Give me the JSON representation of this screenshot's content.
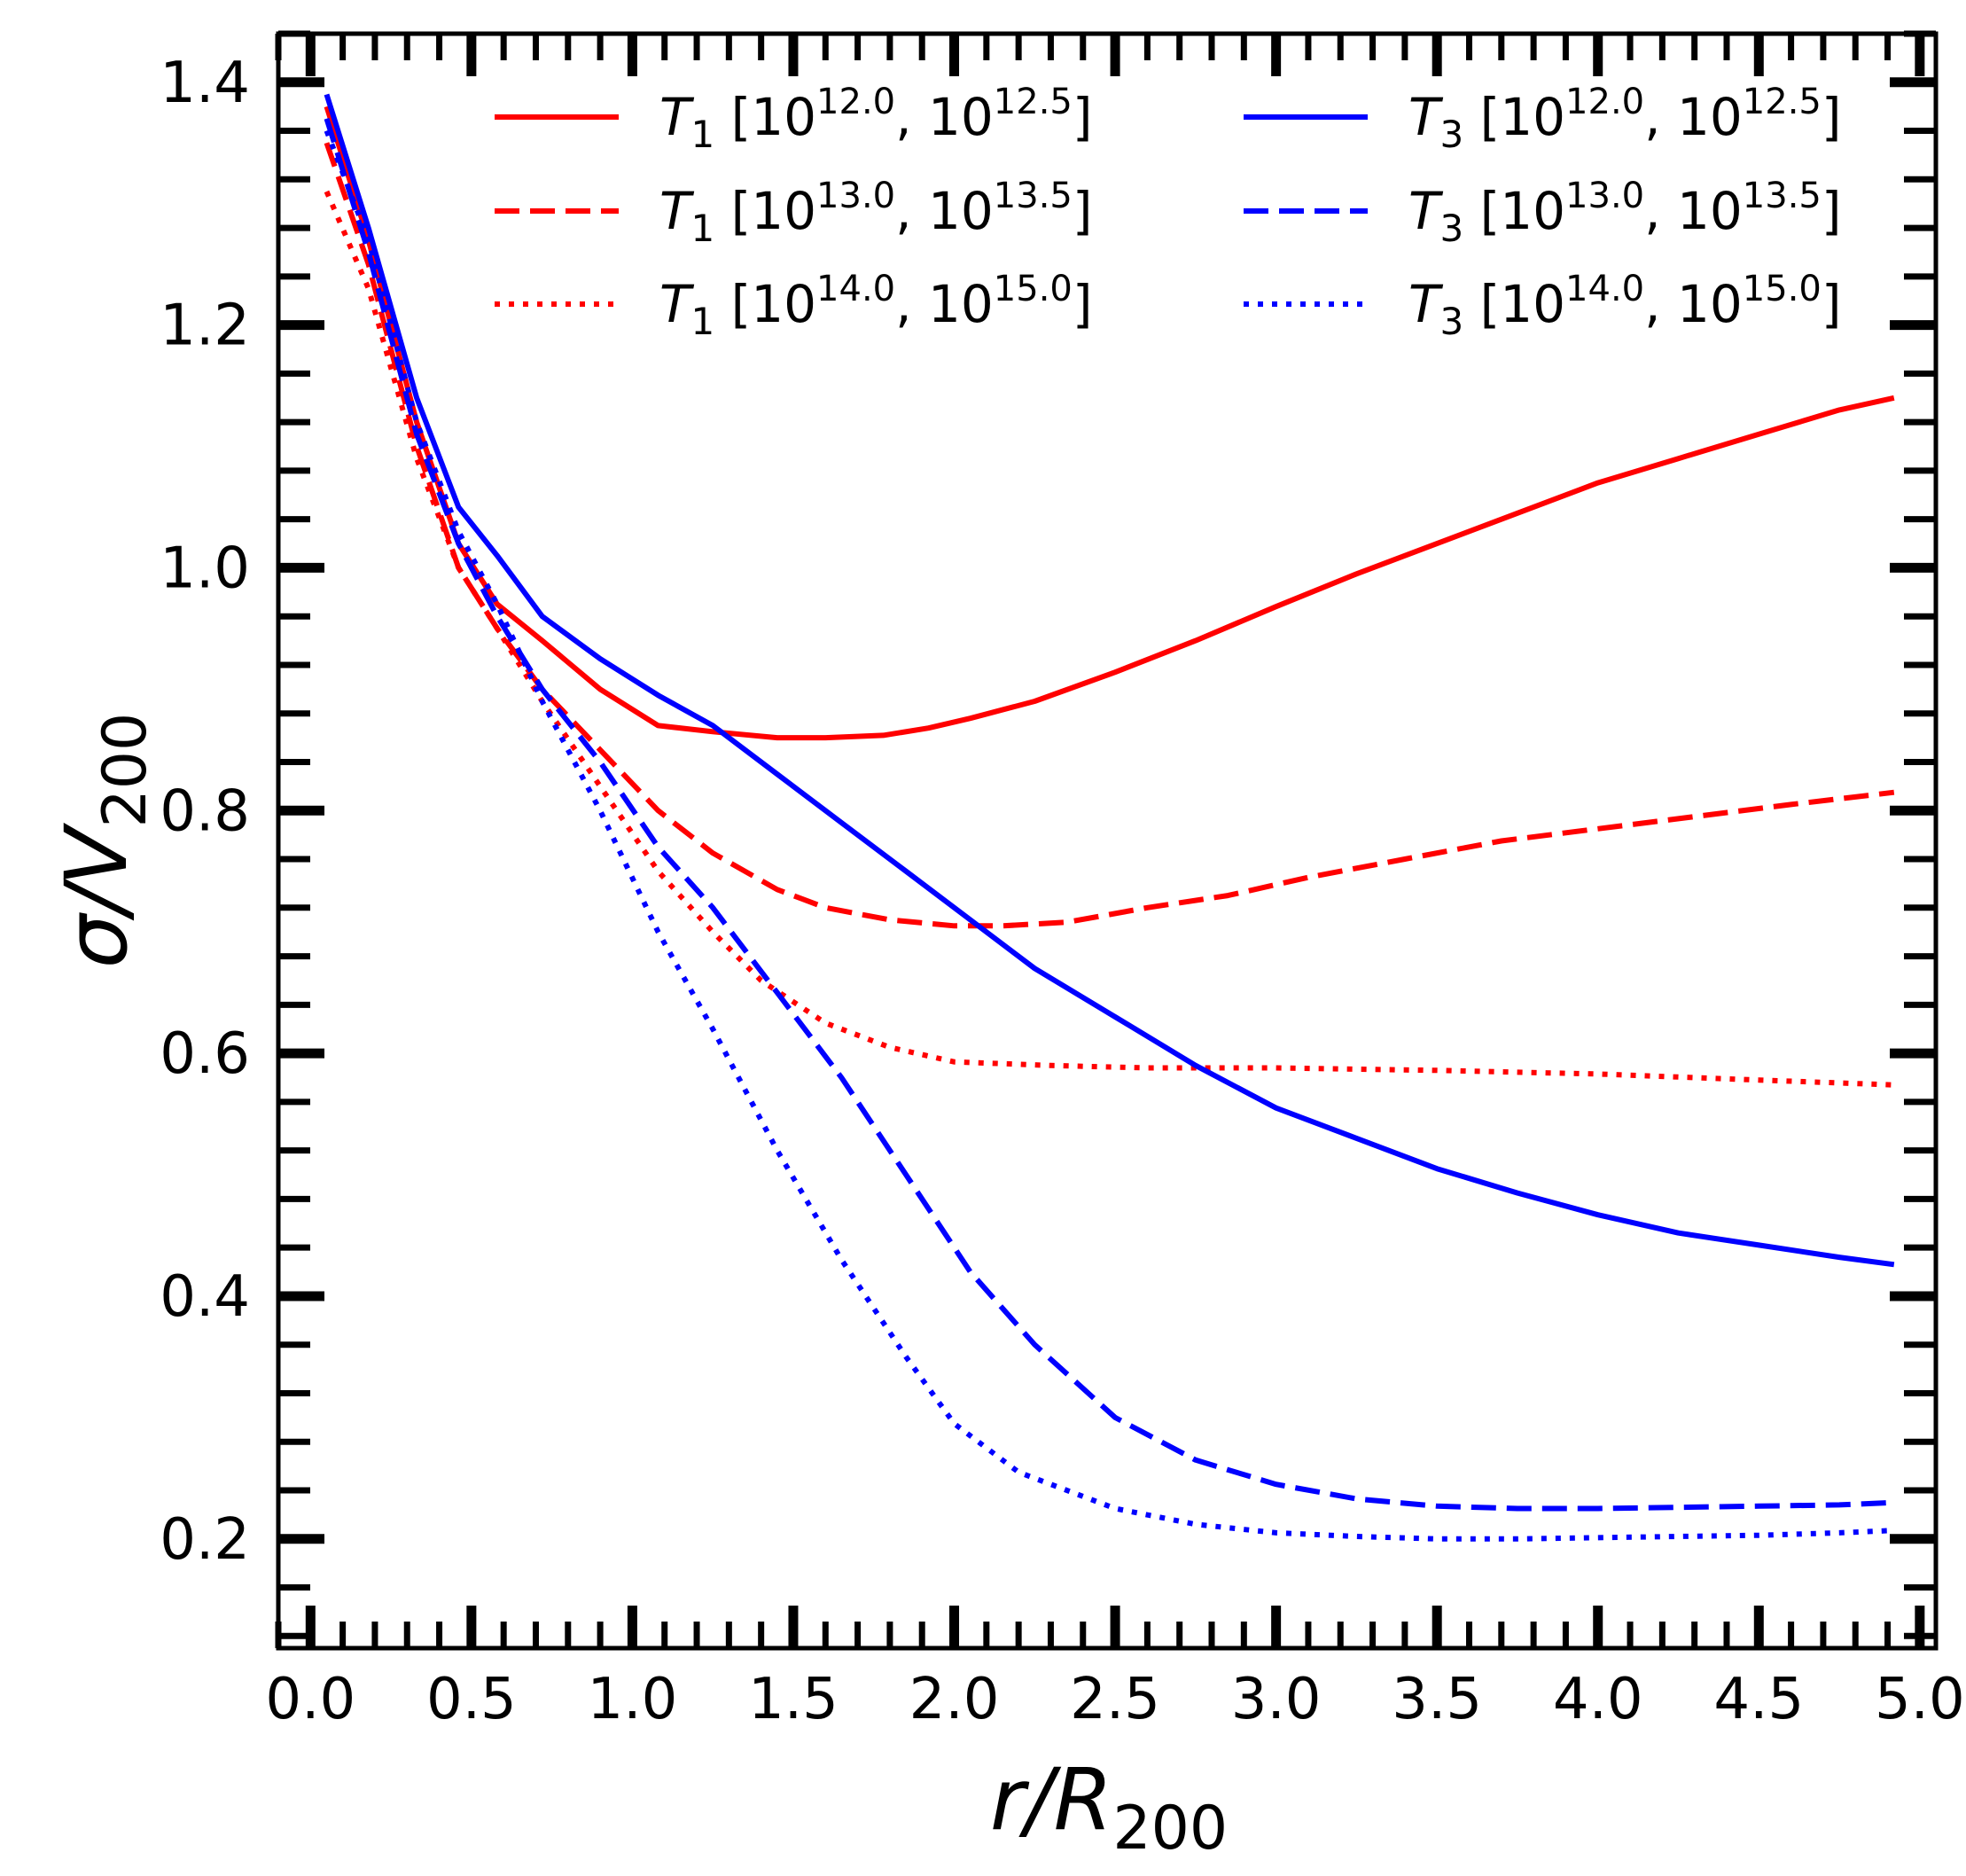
{
  "chart_data": {
    "type": "line",
    "title": "",
    "xlabel": {
      "main": "r/R",
      "sub": "200"
    },
    "ylabel": {
      "main": "σ/V",
      "sub": "200"
    },
    "xlim": [
      -0.1,
      5.05
    ],
    "ylim": [
      0.11,
      1.44
    ],
    "xticks": [
      0.0,
      0.5,
      1.0,
      1.5,
      2.0,
      2.5,
      3.0,
      3.5,
      4.0,
      4.5,
      5.0
    ],
    "xtick_labels": [
      "0.0",
      "0.5",
      "1.0",
      "1.5",
      "2.0",
      "2.5",
      "3.0",
      "3.5",
      "4.0",
      "4.5",
      "5.0"
    ],
    "yticks": [
      0.2,
      0.4,
      0.6,
      0.8,
      1.0,
      1.2,
      1.4
    ],
    "ytick_labels": [
      "0.2",
      "0.4",
      "0.6",
      "0.8",
      "1.0",
      "1.2",
      "1.4"
    ],
    "x_minor_step": 0.1,
    "y_minor_step": 0.04,
    "legend_position": "upper, two columns",
    "series": [
      {
        "name": "T1 [10^12.0, 10^12.5]",
        "legend": {
          "sym": "T",
          "idx": "1",
          "lo_exp": "12.0",
          "hi_exp": "12.5"
        },
        "color": "#ff0000",
        "linestyle": "solid",
        "x": [
          0.05,
          0.18,
          0.33,
          0.46,
          0.58,
          0.72,
          0.9,
          1.08,
          1.25,
          1.45,
          1.6,
          1.78,
          1.92,
          2.05,
          2.25,
          2.5,
          2.75,
          3.0,
          3.25,
          3.5,
          3.75,
          4.0,
          4.25,
          4.5,
          4.75,
          4.92
        ],
        "y": [
          1.38,
          1.27,
          1.12,
          1.02,
          0.97,
          0.94,
          0.9,
          0.87,
          0.865,
          0.86,
          0.86,
          0.862,
          0.868,
          0.876,
          0.89,
          0.914,
          0.94,
          0.968,
          0.995,
          1.02,
          1.045,
          1.07,
          1.09,
          1.11,
          1.13,
          1.14
        ]
      },
      {
        "name": "T1 [10^13.0, 10^13.5]",
        "legend": {
          "sym": "T",
          "idx": "1",
          "lo_exp": "13.0",
          "hi_exp": "13.5"
        },
        "color": "#ff0000",
        "linestyle": "dashed",
        "x": [
          0.05,
          0.18,
          0.33,
          0.46,
          0.58,
          0.72,
          0.9,
          1.08,
          1.25,
          1.45,
          1.6,
          1.8,
          2.0,
          2.15,
          2.35,
          2.6,
          2.85,
          3.1,
          3.4,
          3.7,
          4.0,
          4.3,
          4.6,
          4.92
        ],
        "y": [
          1.35,
          1.25,
          1.1,
          1.0,
          0.95,
          0.9,
          0.85,
          0.8,
          0.765,
          0.735,
          0.72,
          0.71,
          0.705,
          0.705,
          0.708,
          0.72,
          0.73,
          0.745,
          0.76,
          0.775,
          0.785,
          0.795,
          0.805,
          0.815
        ]
      },
      {
        "name": "T1 [10^14.0, 10^15.0]",
        "legend": {
          "sym": "T",
          "idx": "1",
          "lo_exp": "14.0",
          "hi_exp": "15.0"
        },
        "color": "#ff0000",
        "linestyle": "dotted",
        "x": [
          0.05,
          0.18,
          0.33,
          0.46,
          0.58,
          0.72,
          0.9,
          1.08,
          1.25,
          1.4,
          1.6,
          1.8,
          2.0,
          2.3,
          2.6,
          3.0,
          3.5,
          4.0,
          4.5,
          4.92
        ],
        "y": [
          1.31,
          1.23,
          1.09,
          1.0,
          0.95,
          0.89,
          0.82,
          0.75,
          0.7,
          0.66,
          0.625,
          0.605,
          0.593,
          0.59,
          0.588,
          0.588,
          0.586,
          0.583,
          0.578,
          0.574
        ]
      },
      {
        "name": "T3 [10^12.0, 10^12.5]",
        "legend": {
          "sym": "T",
          "idx": "3",
          "lo_exp": "12.0",
          "hi_exp": "12.5"
        },
        "color": "#0000ff",
        "linestyle": "solid",
        "x": [
          0.05,
          0.18,
          0.33,
          0.46,
          0.58,
          0.72,
          0.9,
          1.08,
          1.25,
          1.45,
          1.65,
          1.85,
          2.05,
          2.25,
          2.5,
          2.75,
          3.0,
          3.25,
          3.5,
          3.75,
          4.0,
          4.25,
          4.5,
          4.75,
          4.92
        ],
        "y": [
          1.39,
          1.28,
          1.14,
          1.05,
          1.01,
          0.96,
          0.925,
          0.895,
          0.87,
          0.83,
          0.79,
          0.75,
          0.71,
          0.67,
          0.63,
          0.59,
          0.555,
          0.53,
          0.505,
          0.485,
          0.467,
          0.452,
          0.442,
          0.432,
          0.426
        ]
      },
      {
        "name": "T3 [10^13.0, 10^13.5]",
        "legend": {
          "sym": "T",
          "idx": "3",
          "lo_exp": "13.0",
          "hi_exp": "13.5"
        },
        "color": "#0000ff",
        "linestyle": "dashed",
        "x": [
          0.05,
          0.18,
          0.33,
          0.46,
          0.58,
          0.72,
          0.9,
          1.08,
          1.25,
          1.45,
          1.65,
          1.85,
          2.05,
          2.25,
          2.5,
          2.75,
          3.0,
          3.25,
          3.5,
          3.75,
          4.0,
          4.25,
          4.5,
          4.75,
          4.92
        ],
        "y": [
          1.37,
          1.26,
          1.11,
          1.02,
          0.96,
          0.9,
          0.84,
          0.77,
          0.72,
          0.65,
          0.58,
          0.5,
          0.42,
          0.36,
          0.3,
          0.265,
          0.245,
          0.233,
          0.227,
          0.225,
          0.225,
          0.226,
          0.227,
          0.228,
          0.23
        ]
      },
      {
        "name": "T3 [10^14.0, 10^15.0]",
        "legend": {
          "sym": "T",
          "idx": "3",
          "lo_exp": "14.0",
          "hi_exp": "15.0"
        },
        "color": "#0000ff",
        "linestyle": "dotted",
        "x": [
          0.05,
          0.18,
          0.33,
          0.46,
          0.58,
          0.72,
          0.9,
          1.08,
          1.25,
          1.45,
          1.65,
          1.85,
          2.0,
          2.2,
          2.5,
          2.75,
          3.0,
          3.25,
          3.5,
          3.75,
          4.0,
          4.25,
          4.5,
          4.75,
          4.92
        ],
        "y": [
          1.36,
          1.27,
          1.12,
          1.03,
          0.97,
          0.89,
          0.8,
          0.7,
          0.62,
          0.52,
          0.43,
          0.35,
          0.295,
          0.255,
          0.225,
          0.212,
          0.205,
          0.202,
          0.2,
          0.2,
          0.201,
          0.202,
          0.203,
          0.205,
          0.207
        ]
      }
    ]
  }
}
